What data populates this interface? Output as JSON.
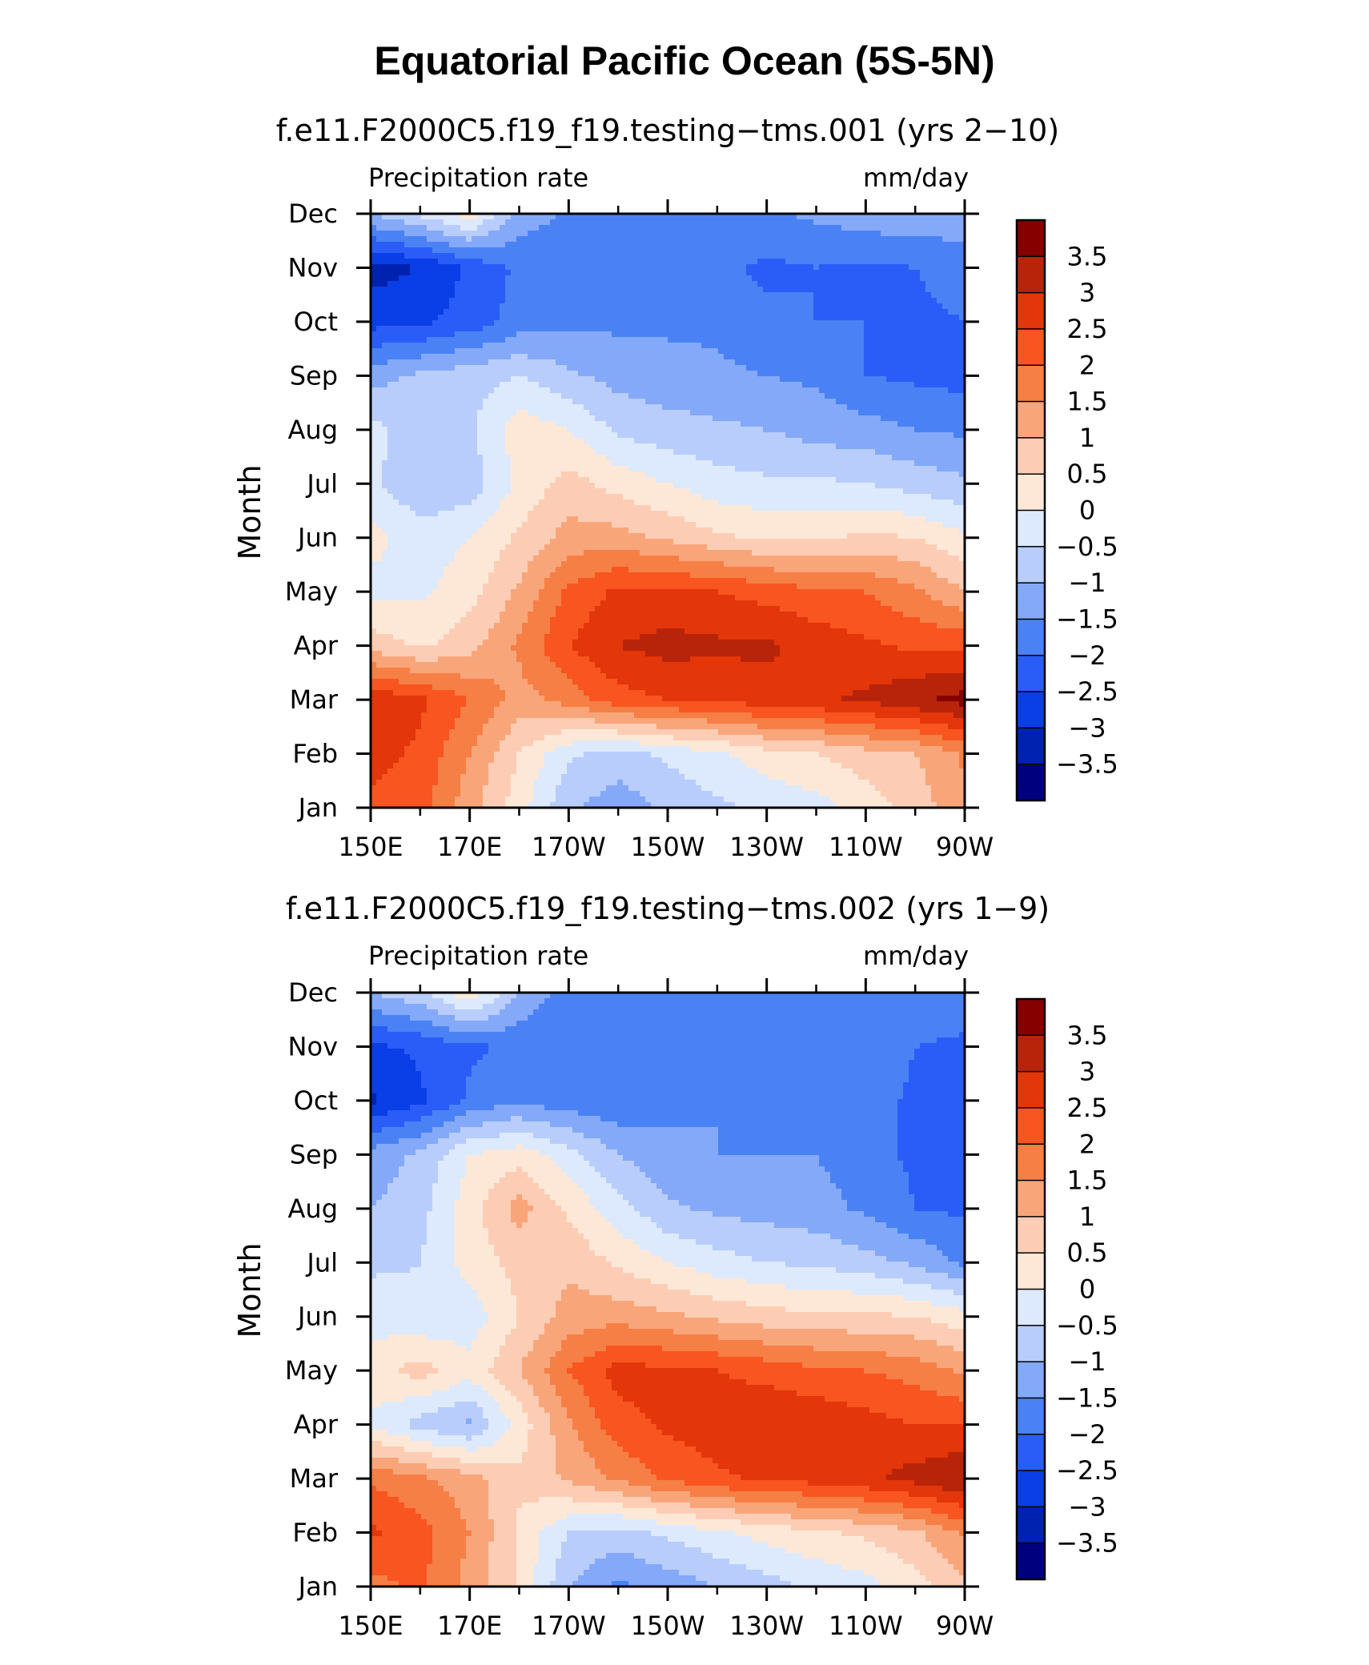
{
  "chart_data": {
    "type": "heatmap",
    "title": "Equatorial Pacific Ocean (5S-5N)",
    "colorbar": {
      "levels": [
        -3.5,
        -3,
        -2.5,
        -2,
        -1.5,
        -1,
        -0.5,
        0,
        0.5,
        1,
        1.5,
        2,
        2.5,
        3,
        3.5
      ],
      "labels": [
        "3.5",
        "3",
        "2.5",
        "2",
        "1.5",
        "1",
        "0.5",
        "0",
        "−0.5",
        "−1",
        "−1.5",
        "−2",
        "−2.5",
        "−3",
        "−3.5"
      ],
      "colors": [
        "#00007f",
        "#0022b0",
        "#0a3ee6",
        "#2a5df7",
        "#4a82f5",
        "#84a9f9",
        "#b8cdfb",
        "#dde9fc",
        "#fde8d8",
        "#fccdb4",
        "#f9a57a",
        "#f67f45",
        "#f85520",
        "#e3360a",
        "#b8240a",
        "#860000"
      ]
    },
    "panels": [
      {
        "subtitle": "f.e11.F2000C5.f19_f19.testing−tms.001 (yrs 2−10)",
        "left_label": "Precipitation rate",
        "right_label": "mm/day",
        "ylabel": "Month",
        "x_tick_labels": [
          "150E",
          "170E",
          "170W",
          "150W",
          "130W",
          "110W",
          "90W"
        ],
        "y_tick_labels": [
          "Jan",
          "Feb",
          "Mar",
          "Apr",
          "May",
          "Jun",
          "Jul",
          "Aug",
          "Sep",
          "Oct",
          "Nov",
          "Dec"
        ],
        "longitudes": [
          150,
          160,
          170,
          180,
          190,
          200,
          210,
          220,
          230,
          240,
          250,
          260,
          270
        ],
        "months": [
          "Jan",
          "Feb",
          "Mar",
          "Apr",
          "May",
          "Jun",
          "Jul",
          "Aug",
          "Sep",
          "Oct",
          "Nov",
          "Dec"
        ],
        "values": [
          [
            2.4,
            2.2,
            1.2,
            0.2,
            -0.9,
            -1.3,
            -0.9,
            -0.6,
            -0.4,
            -0.2,
            0.2,
            0.7,
            1.4
          ],
          [
            2.7,
            2.4,
            1.5,
            0.5,
            -0.4,
            -0.7,
            -0.4,
            -0.1,
            0.3,
            0.5,
            0.8,
            1.0,
            1.6
          ],
          [
            2.9,
            2.6,
            2.0,
            1.3,
            1.7,
            2.3,
            2.5,
            2.6,
            2.8,
            2.9,
            3.1,
            3.4,
            3.7
          ],
          [
            0.8,
            0.4,
            0.8,
            1.6,
            2.5,
            3.0,
            3.2,
            3.1,
            3.1,
            2.8,
            2.6,
            2.4,
            2.4
          ],
          [
            -0.2,
            -0.1,
            0.3,
            1.1,
            2.1,
            2.6,
            2.6,
            2.5,
            2.3,
            2.1,
            2.0,
            1.6,
            1.0
          ],
          [
            0.2,
            -0.3,
            0.0,
            0.6,
            1.2,
            1.2,
            0.9,
            0.6,
            0.4,
            0.4,
            0.6,
            0.5,
            0.1
          ],
          [
            -0.4,
            -0.9,
            -0.8,
            0.1,
            0.7,
            0.3,
            0.0,
            -0.3,
            -0.4,
            -0.4,
            -0.5,
            -0.7,
            -0.9
          ],
          [
            -0.3,
            -0.8,
            -0.6,
            0.3,
            0.0,
            -0.6,
            -0.8,
            -0.9,
            -1.0,
            -1.2,
            -1.3,
            -1.5,
            -1.6
          ],
          [
            -1.2,
            -0.9,
            -0.7,
            -0.5,
            -0.9,
            -1.2,
            -1.3,
            -1.4,
            -1.5,
            -1.6,
            -2.0,
            -2.1,
            -2.2
          ],
          [
            -2.7,
            -2.6,
            -2.3,
            -1.8,
            -1.6,
            -1.6,
            -1.6,
            -1.6,
            -1.9,
            -2.0,
            -2.0,
            -2.1,
            -2.0
          ],
          [
            -3.2,
            -3.0,
            -2.4,
            -1.9,
            -1.8,
            -1.7,
            -1.5,
            -1.9,
            -2.1,
            -2.0,
            -2.1,
            -2.0,
            -1.8
          ],
          [
            -1.0,
            -0.4,
            0.3,
            -1.2,
            -1.6,
            -1.8,
            -1.7,
            -1.6,
            -1.6,
            -1.4,
            -1.2,
            -1.1,
            -1.2
          ]
        ]
      },
      {
        "subtitle": "f.e11.F2000C5.f19_f19.testing−tms.002 (yrs 1−9)",
        "left_label": "Precipitation rate",
        "right_label": "mm/day",
        "ylabel": "Month",
        "x_tick_labels": [
          "150E",
          "170E",
          "170W",
          "150W",
          "130W",
          "110W",
          "90W"
        ],
        "y_tick_labels": [
          "Jan",
          "Feb",
          "Mar",
          "Apr",
          "May",
          "Jun",
          "Jul",
          "Aug",
          "Sep",
          "Oct",
          "Nov",
          "Dec"
        ],
        "longitudes": [
          150,
          160,
          170,
          180,
          190,
          200,
          210,
          220,
          230,
          240,
          250,
          260,
          270
        ],
        "months": [
          "Jan",
          "Feb",
          "Mar",
          "Apr",
          "May",
          "Jun",
          "Jul",
          "Aug",
          "Sep",
          "Oct",
          "Nov",
          "Dec"
        ],
        "values": [
          [
            1.8,
            2.1,
            1.3,
            0.4,
            -1.0,
            -1.6,
            -1.3,
            -1.0,
            -0.7,
            -0.4,
            -0.2,
            0.3,
            0.9
          ],
          [
            2.6,
            2.2,
            1.5,
            0.4,
            -0.5,
            -0.7,
            -0.4,
            -0.1,
            0.2,
            0.4,
            0.6,
            0.9,
            1.6
          ],
          [
            1.9,
            1.6,
            1.2,
            0.6,
            1.1,
            1.6,
            2.1,
            2.4,
            2.6,
            2.7,
            2.9,
            3.2,
            3.5
          ],
          [
            -0.1,
            -0.7,
            -1.1,
            0.2,
            1.4,
            2.3,
            2.6,
            2.8,
            3.0,
            2.9,
            2.7,
            2.5,
            2.5
          ],
          [
            0.3,
            0.7,
            0.2,
            1.0,
            2.0,
            2.7,
            2.6,
            2.5,
            2.3,
            2.1,
            2.0,
            1.8,
            1.4
          ],
          [
            -0.2,
            -0.4,
            -0.3,
            0.5,
            1.2,
            1.3,
            1.1,
            0.9,
            0.7,
            0.6,
            0.6,
            0.5,
            0.2
          ],
          [
            -0.6,
            -0.5,
            0.2,
            0.7,
            0.9,
            0.4,
            0.0,
            -0.3,
            -0.5,
            -0.6,
            -0.8,
            -1.1,
            -1.6
          ],
          [
            -1.0,
            -0.7,
            0.3,
            1.2,
            0.4,
            -0.3,
            -0.9,
            -1.1,
            -1.2,
            -1.3,
            -1.6,
            -2.0,
            -2.1
          ],
          [
            -1.3,
            -0.9,
            0.0,
            0.3,
            -0.3,
            -1.0,
            -1.4,
            -1.5,
            -1.5,
            -1.5,
            -1.8,
            -2.1,
            -2.0
          ],
          [
            -3.1,
            -2.6,
            -1.9,
            -1.6,
            -1.8,
            -1.9,
            -1.6,
            -1.5,
            -1.5,
            -1.5,
            -1.8,
            -2.1,
            -2.0
          ],
          [
            -2.6,
            -2.4,
            -2.1,
            -1.9,
            -2.0,
            -2.0,
            -1.6,
            -1.5,
            -1.5,
            -1.5,
            -1.6,
            -2.0,
            -2.1
          ],
          [
            -1.0,
            -0.6,
            0.4,
            -1.0,
            -1.8,
            -1.8,
            -1.5,
            -1.5,
            -1.5,
            -1.5,
            -1.5,
            -1.6,
            -1.7
          ]
        ]
      }
    ]
  }
}
